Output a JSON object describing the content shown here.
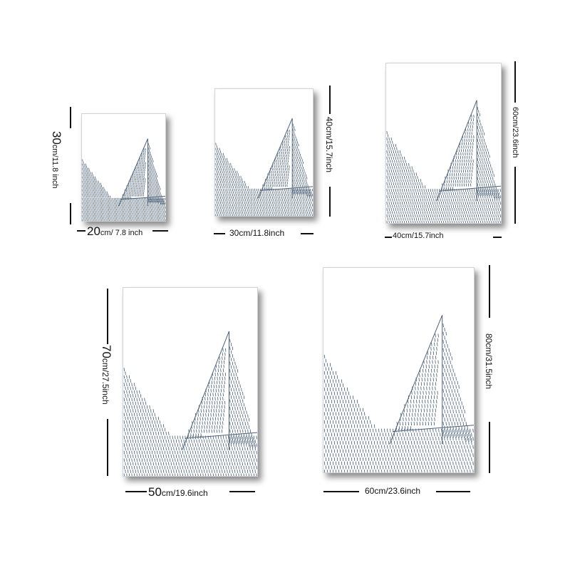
{
  "accent_color": "#4d6279",
  "products": [
    {
      "size": "20x30",
      "width_label": "20",
      "width_unit": "cm/ 7.8 inch",
      "height_label": "30",
      "height_unit": "cm/11.8 inch"
    },
    {
      "size": "30x40",
      "width_label": "30cm/11.8inch",
      "height_label": "40cm/15.7inch"
    },
    {
      "size": "40x60",
      "width_label": "40cm/15.7inch",
      "height_label": "60cm/23.6inch"
    },
    {
      "size": "50x70",
      "width_label": "50",
      "width_unit": "cm/19.6inch",
      "height_label": "70",
      "height_unit": "cm/27.5inch"
    },
    {
      "size": "60x80",
      "width_label": "60cm/23.6inch",
      "height_label": "80cm/31.5inch"
    }
  ]
}
